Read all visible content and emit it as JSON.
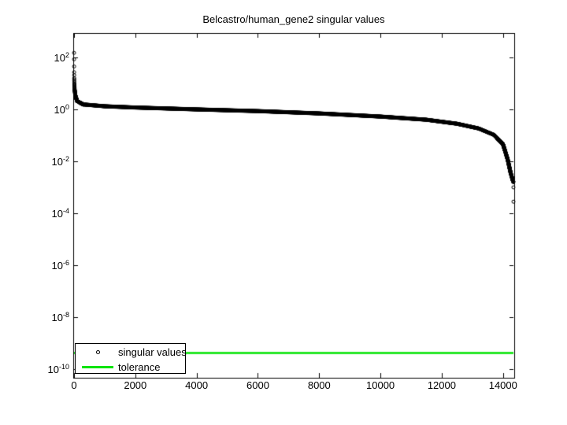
{
  "figure": {
    "background_color": "#ffffff",
    "title": "Belcastro/human_gene2 singular values"
  },
  "chart_data": {
    "type": "scatter",
    "title": "Belcastro/human_gene2 singular values",
    "xlabel": "",
    "ylabel": "",
    "y_scale": "log",
    "grid": false,
    "xlim": [
      0,
      14340
    ],
    "ylim": [
      4.5e-11,
      870.0
    ],
    "x_ticks": [
      0,
      2000,
      4000,
      6000,
      8000,
      10000,
      12000,
      14000
    ],
    "y_tick_exponents": [
      2,
      0,
      -2,
      -4,
      -6,
      -8,
      -10
    ],
    "n_singular_values": 14340,
    "marker": "o",
    "marker_color": "#000000",
    "tolerance": 4.3e-10,
    "tolerance_color": "#00e400",
    "legend": {
      "position": "southwest",
      "entries": [
        {
          "label": "singular values",
          "sample": "circle-marker",
          "color": "#000000"
        },
        {
          "label": "tolerance",
          "sample": "line",
          "color": "#00e400"
        }
      ]
    },
    "singular_values_profile": {
      "head": [
        150,
        85,
        45
      ],
      "keypoints": [
        [
          4,
          27
        ],
        [
          6,
          16
        ],
        [
          10,
          10
        ],
        [
          20,
          5.8
        ],
        [
          40,
          3.6
        ],
        [
          100,
          2.1
        ],
        [
          300,
          1.55
        ],
        [
          1000,
          1.32
        ],
        [
          2000,
          1.18
        ],
        [
          4000,
          1.0
        ],
        [
          6000,
          0.86
        ],
        [
          8000,
          0.7
        ],
        [
          10000,
          0.53
        ],
        [
          11500,
          0.4
        ],
        [
          12500,
          0.28
        ],
        [
          13200,
          0.185
        ],
        [
          13700,
          0.105
        ],
        [
          14000,
          0.045
        ],
        [
          14150,
          0.012
        ],
        [
          14250,
          0.0035
        ],
        [
          14336,
          0.0016
        ]
      ],
      "tail": [
        [
          14339,
          0.001
        ],
        [
          14340,
          0.00028
        ]
      ]
    }
  }
}
